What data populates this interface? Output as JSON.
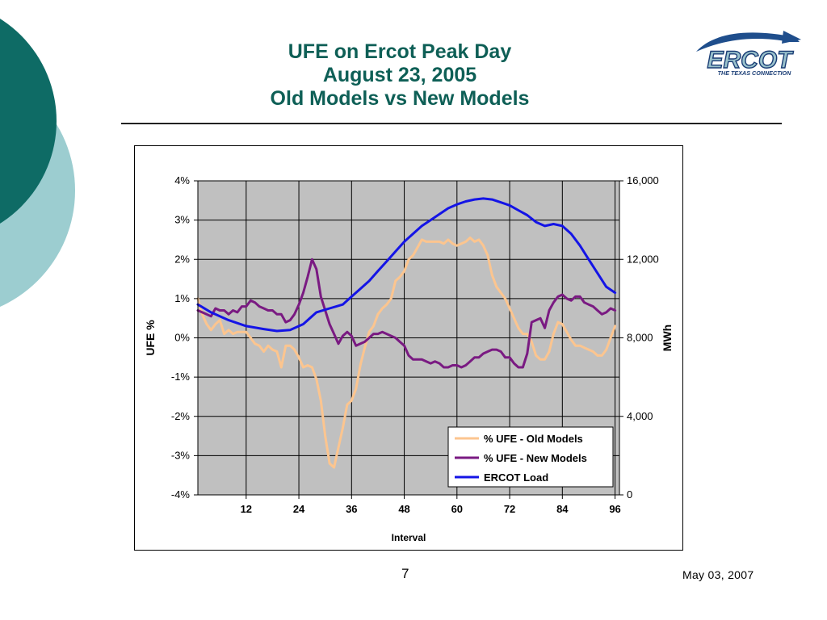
{
  "slide": {
    "title_line1": "UFE on Ercot Peak Day",
    "title_line2": "August 23, 2005",
    "title_line3": "Old Models vs New Models",
    "page_number": "7",
    "date": "May 03, 2007"
  },
  "logo": {
    "name": "ERCOT",
    "tagline": "THE TEXAS CONNECTION"
  },
  "colors": {
    "title": "#0e5f56",
    "circle_dark": "#0e6b65",
    "circle_light": "#9ccdd0",
    "plot_bg": "#c0c0c0",
    "old_models": "#fcc58f",
    "new_models": "#7a1a82",
    "ercot_load": "#1414e6"
  },
  "chart_data": {
    "type": "line",
    "xlabel": "Interval",
    "ylabel_left": "UFE %",
    "ylabel_right": "MWh",
    "xlim": [
      1,
      97
    ],
    "x_ticks": [
      12,
      24,
      36,
      48,
      60,
      72,
      84,
      96
    ],
    "x_tick_labels": [
      "12",
      "24",
      "36",
      "48",
      "60",
      "72",
      "84",
      "96"
    ],
    "ylim_left": [
      -4,
      4
    ],
    "y_ticks_left": [
      4,
      3,
      2,
      1,
      0,
      -1,
      -2,
      -3,
      -4
    ],
    "y_tick_labels_left": [
      "4%",
      "3%",
      "2%",
      "1%",
      "0%",
      "-1%",
      "-2%",
      "-3%",
      "-4%"
    ],
    "ylim_right": [
      0,
      16000
    ],
    "y_ticks_right": [
      16000,
      12000,
      8000,
      4000,
      0
    ],
    "y_tick_labels_right": [
      "16,000",
      "12,000",
      "8,000",
      "4,000",
      "0"
    ],
    "grid": true,
    "legend_position": "bottom-right",
    "series": [
      {
        "name": "% UFE - Old Models",
        "axis": "left",
        "x": [
          1,
          2,
          3,
          4,
          5,
          6,
          7,
          8,
          9,
          10,
          11,
          12,
          13,
          14,
          15,
          16,
          17,
          18,
          19,
          20,
          21,
          22,
          23,
          24,
          25,
          26,
          27,
          28,
          29,
          30,
          31,
          32,
          33,
          34,
          35,
          36,
          37,
          38,
          39,
          40,
          41,
          42,
          43,
          44,
          45,
          46,
          47,
          48,
          49,
          50,
          51,
          52,
          53,
          54,
          55,
          56,
          57,
          58,
          59,
          60,
          61,
          62,
          63,
          64,
          65,
          66,
          67,
          68,
          69,
          70,
          71,
          72,
          73,
          74,
          75,
          76,
          77,
          78,
          79,
          80,
          81,
          82,
          83,
          84,
          85,
          86,
          87,
          88,
          89,
          90,
          91,
          92,
          93,
          94,
          95,
          96
        ],
        "values": [
          1.0,
          0.6,
          0.35,
          0.2,
          0.35,
          0.45,
          0.1,
          0.2,
          0.1,
          0.15,
          0.15,
          0.15,
          0.0,
          -0.15,
          -0.2,
          -0.35,
          -0.2,
          -0.3,
          -0.35,
          -0.75,
          -0.2,
          -0.2,
          -0.3,
          -0.5,
          -0.75,
          -0.7,
          -0.75,
          -1.05,
          -1.6,
          -2.5,
          -3.2,
          -3.3,
          -2.8,
          -2.3,
          -1.7,
          -1.6,
          -1.3,
          -0.7,
          -0.25,
          0.15,
          0.3,
          0.6,
          0.75,
          0.85,
          1.0,
          1.45,
          1.55,
          1.7,
          2.0,
          2.1,
          2.3,
          2.5,
          2.45,
          2.45,
          2.45,
          2.45,
          2.4,
          2.5,
          2.4,
          2.35,
          2.4,
          2.45,
          2.55,
          2.45,
          2.5,
          2.35,
          2.1,
          1.6,
          1.3,
          1.15,
          1.0,
          0.75,
          0.5,
          0.25,
          0.1,
          0.1,
          -0.1,
          -0.45,
          -0.55,
          -0.55,
          -0.35,
          0.1,
          0.4,
          0.35,
          0.15,
          -0.05,
          -0.2,
          -0.2,
          -0.25,
          -0.3,
          -0.35,
          -0.45,
          -0.45,
          -0.3,
          0.0,
          0.3
        ]
      },
      {
        "name": "% UFE - New Models",
        "axis": "left",
        "x": [
          1,
          2,
          3,
          4,
          5,
          6,
          7,
          8,
          9,
          10,
          11,
          12,
          13,
          14,
          15,
          16,
          17,
          18,
          19,
          20,
          21,
          22,
          23,
          24,
          25,
          26,
          27,
          28,
          29,
          30,
          31,
          32,
          33,
          34,
          35,
          36,
          37,
          38,
          39,
          40,
          41,
          42,
          43,
          44,
          45,
          46,
          47,
          48,
          49,
          50,
          51,
          52,
          53,
          54,
          55,
          56,
          57,
          58,
          59,
          60,
          61,
          62,
          63,
          64,
          65,
          66,
          67,
          68,
          69,
          70,
          71,
          72,
          73,
          74,
          75,
          76,
          77,
          78,
          79,
          80,
          81,
          82,
          83,
          84,
          85,
          86,
          87,
          88,
          89,
          90,
          91,
          92,
          93,
          94,
          95,
          96
        ],
        "values": [
          0.7,
          0.65,
          0.6,
          0.55,
          0.75,
          0.7,
          0.7,
          0.6,
          0.7,
          0.65,
          0.8,
          0.8,
          0.95,
          0.9,
          0.8,
          0.75,
          0.7,
          0.7,
          0.6,
          0.6,
          0.4,
          0.45,
          0.6,
          0.85,
          1.15,
          1.55,
          2.0,
          1.75,
          1.05,
          0.7,
          0.35,
          0.1,
          -0.15,
          0.05,
          0.15,
          0.05,
          -0.2,
          -0.15,
          -0.1,
          0.0,
          0.1,
          0.1,
          0.15,
          0.1,
          0.05,
          0.0,
          -0.1,
          -0.2,
          -0.45,
          -0.55,
          -0.55,
          -0.55,
          -0.6,
          -0.65,
          -0.6,
          -0.65,
          -0.75,
          -0.75,
          -0.7,
          -0.7,
          -0.75,
          -0.7,
          -0.6,
          -0.5,
          -0.5,
          -0.4,
          -0.35,
          -0.3,
          -0.3,
          -0.35,
          -0.5,
          -0.5,
          -0.65,
          -0.75,
          -0.75,
          -0.4,
          0.4,
          0.45,
          0.5,
          0.25,
          0.7,
          0.9,
          1.05,
          1.1,
          1.0,
          0.95,
          1.05,
          1.05,
          0.9,
          0.85,
          0.8,
          0.7,
          0.6,
          0.65,
          0.75,
          0.7
        ]
      },
      {
        "name": "ERCOT Load",
        "axis": "right",
        "x": [
          1,
          4,
          8,
          12,
          16,
          19,
          22,
          25,
          28,
          31,
          34,
          36,
          38,
          40,
          42,
          44,
          46,
          48,
          50,
          52,
          54,
          56,
          58,
          60,
          62,
          64,
          66,
          68,
          70,
          72,
          74,
          76,
          78,
          80,
          82,
          84,
          86,
          88,
          90,
          92,
          94,
          96
        ],
        "values": [
          9700,
          9300,
          8900,
          8600,
          8450,
          8350,
          8400,
          8700,
          9300,
          9500,
          9700,
          10100,
          10500,
          10900,
          11400,
          11900,
          12400,
          12900,
          13300,
          13700,
          14000,
          14300,
          14600,
          14800,
          14950,
          15050,
          15100,
          15050,
          14900,
          14750,
          14500,
          14250,
          13900,
          13700,
          13800,
          13700,
          13300,
          12700,
          12000,
          11300,
          10600,
          10300
        ]
      }
    ]
  }
}
